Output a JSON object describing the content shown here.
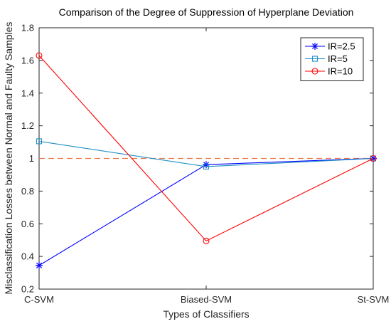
{
  "chart_data": {
    "type": "line",
    "title": "Comparison of the Degree of Suppression of Hyperplane Deviation",
    "xlabel": "Types of Classifiers",
    "ylabel": "Misclassification Losses between Normal and Faulty Samples",
    "categories": [
      "C-SVM",
      "Biased-SVM",
      "St-SVM"
    ],
    "ylim": [
      0.2,
      1.8
    ],
    "yticks": [
      "0.2",
      "0.4",
      "0.6",
      "0.8",
      "1",
      "1.2",
      "1.4",
      "1.6",
      "1.8"
    ],
    "grid": false,
    "legend_position": "top-right",
    "reference_line": {
      "y": 1,
      "color": "#E8794A",
      "style": "dashed"
    },
    "series": [
      {
        "name": "IR=2.5",
        "values": [
          0.345,
          0.962,
          1.0
        ],
        "color": "#0000FF",
        "marker": "asterisk"
      },
      {
        "name": "IR=5",
        "values": [
          1.105,
          0.95,
          1.0
        ],
        "color": "#1F8FC4",
        "marker": "square"
      },
      {
        "name": "IR=10",
        "values": [
          1.63,
          0.495,
          1.0
        ],
        "color": "#FF0000",
        "marker": "circle"
      }
    ]
  }
}
